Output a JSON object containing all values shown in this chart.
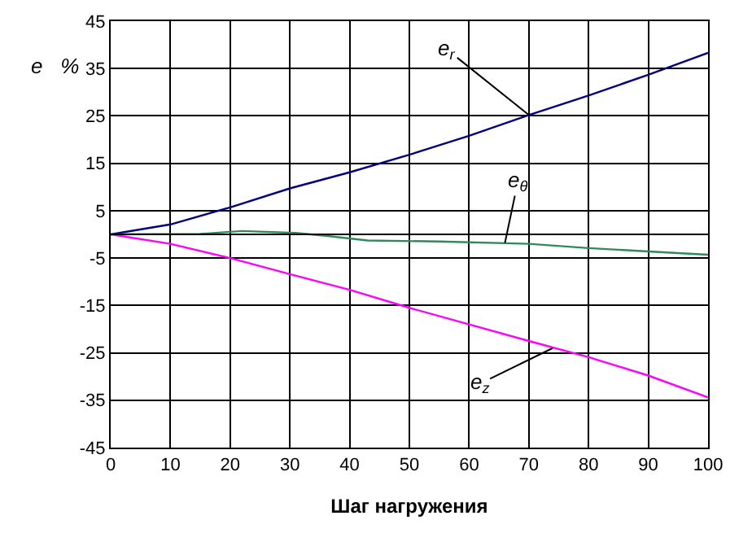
{
  "chart_data": {
    "type": "line",
    "xlabel": "Шаг нагружения",
    "ylabel": "e   %",
    "x": [
      0,
      10,
      20,
      30,
      40,
      50,
      60,
      70,
      80,
      90,
      100
    ],
    "series": [
      {
        "color": "#000080",
        "values": [
          0,
          2.1,
          5.7,
          9.7,
          13.1,
          16.8,
          20.8,
          25.2,
          29.3,
          33.7,
          38.3
        ]
      },
      {
        "color": "#2e8b57",
        "x": [
          0,
          15,
          22,
          31,
          36,
          43,
          55,
          70,
          80,
          90,
          100
        ],
        "values": [
          0,
          0.1,
          0.7,
          0.3,
          -0.3,
          -1.3,
          -1.5,
          -2.0,
          -2.9,
          -3.6,
          -4.3
        ]
      },
      {
        "color": "#ff00ff",
        "values": [
          0,
          -2.0,
          -5,
          -8.4,
          -11.7,
          -15.5,
          -19,
          -22.5,
          -25.9,
          -29.8,
          -34.4
        ]
      }
    ],
    "annotations": [
      {
        "text": "e$_{r}$",
        "x": 70,
        "y": 25.2
      },
      {
        "text": "e$_{θ}$",
        "x": 66,
        "y": -1.8
      },
      {
        "text": "e$_{z}$",
        "x": 74,
        "y": -24
      }
    ],
    "xlim": [
      0,
      100
    ],
    "xticks": [
      0,
      10,
      20,
      30,
      40,
      50,
      60,
      70,
      80,
      90,
      100
    ],
    "ylim": [
      -45,
      45
    ],
    "yticks": [
      -45,
      -35,
      -25,
      -15,
      -5,
      5,
      15,
      25,
      35,
      45
    ],
    "grid": true,
    "marker": "none",
    "line_style": "solid"
  }
}
